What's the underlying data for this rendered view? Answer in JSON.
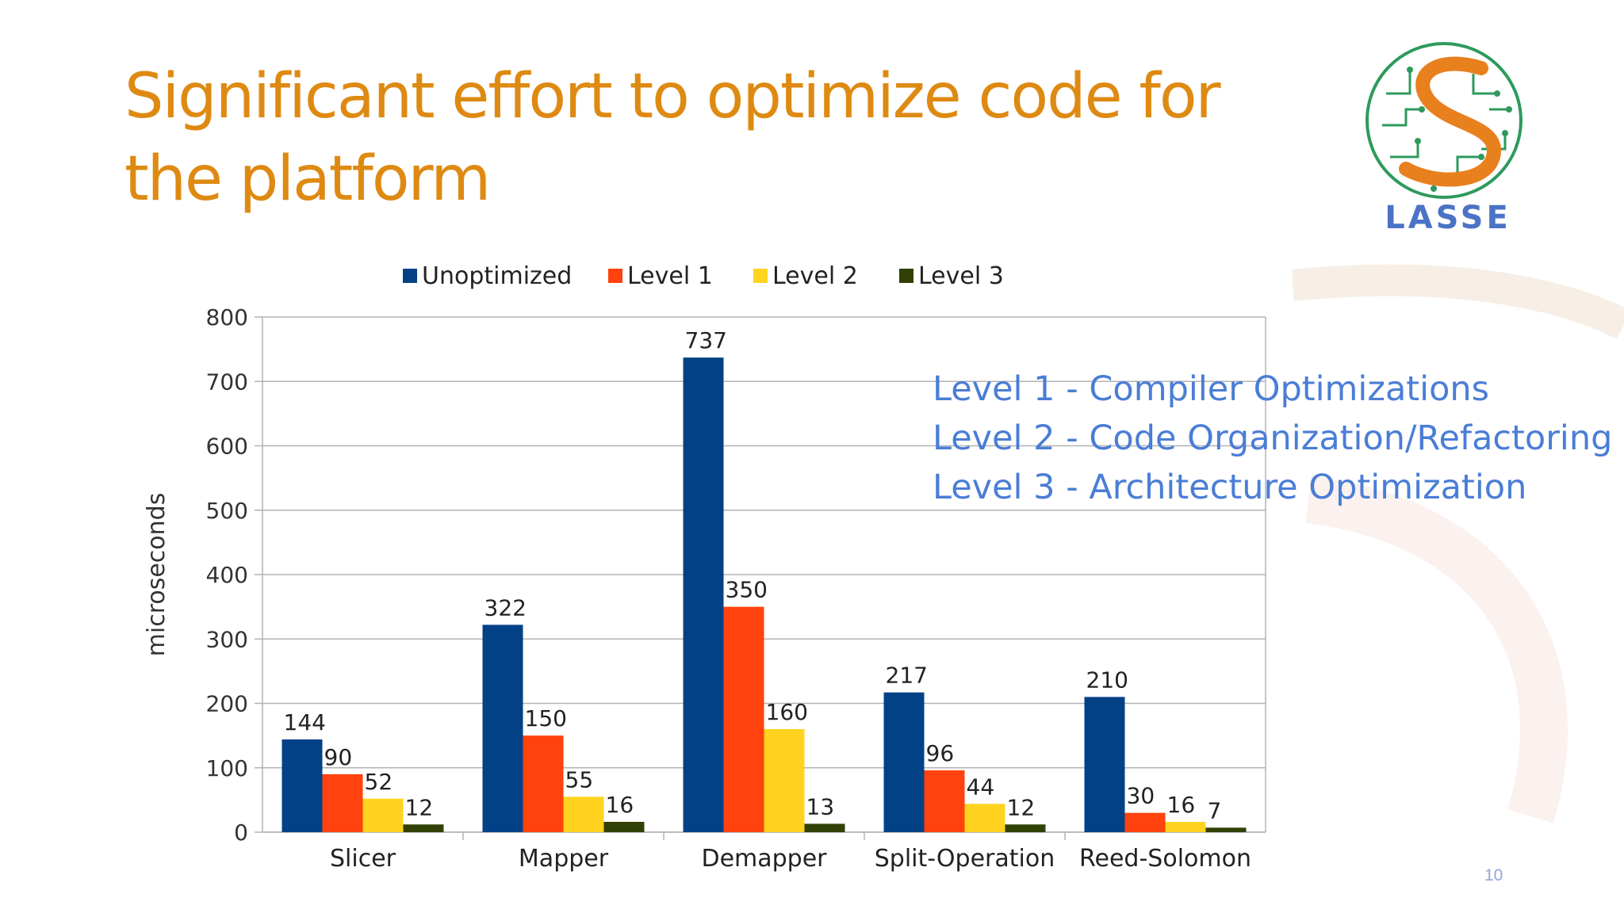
{
  "slide": {
    "title": "Significant effort to optimize code for the platform",
    "page_number": "10",
    "logo_text": "LASSE",
    "notes": [
      "Level 1 - Compiler Optimizations",
      "Level 2 - Code Organization/Refactoring",
      "Level 3 - Architecture Optimization"
    ]
  },
  "colors": {
    "title": "#DE8A12",
    "notes": "#4A7DD6",
    "unoptimized": "#034187",
    "level1": "#FF420E",
    "level2": "#FFD320",
    "level3": "#314004"
  },
  "chart_data": {
    "type": "bar",
    "categories": [
      "Slicer",
      "Mapper",
      "Demapper",
      "Split-Operation",
      "Reed-Solomon"
    ],
    "series": [
      {
        "name": "Unoptimized",
        "values": [
          144,
          322,
          737,
          217,
          210
        ],
        "color": "#034187"
      },
      {
        "name": "Level 1",
        "values": [
          90,
          150,
          350,
          96,
          30
        ],
        "color": "#FF420E"
      },
      {
        "name": "Level 2",
        "values": [
          52,
          55,
          160,
          44,
          16
        ],
        "color": "#FFD320"
      },
      {
        "name": "Level 3",
        "values": [
          12,
          16,
          13,
          12,
          7
        ],
        "color": "#314004"
      }
    ],
    "ylabel": "microseconds",
    "xlabel": "",
    "ylim": [
      0,
      800
    ],
    "yticks": [
      0,
      100,
      200,
      300,
      400,
      500,
      600,
      700,
      800
    ],
    "grid": true,
    "legend": "top"
  }
}
